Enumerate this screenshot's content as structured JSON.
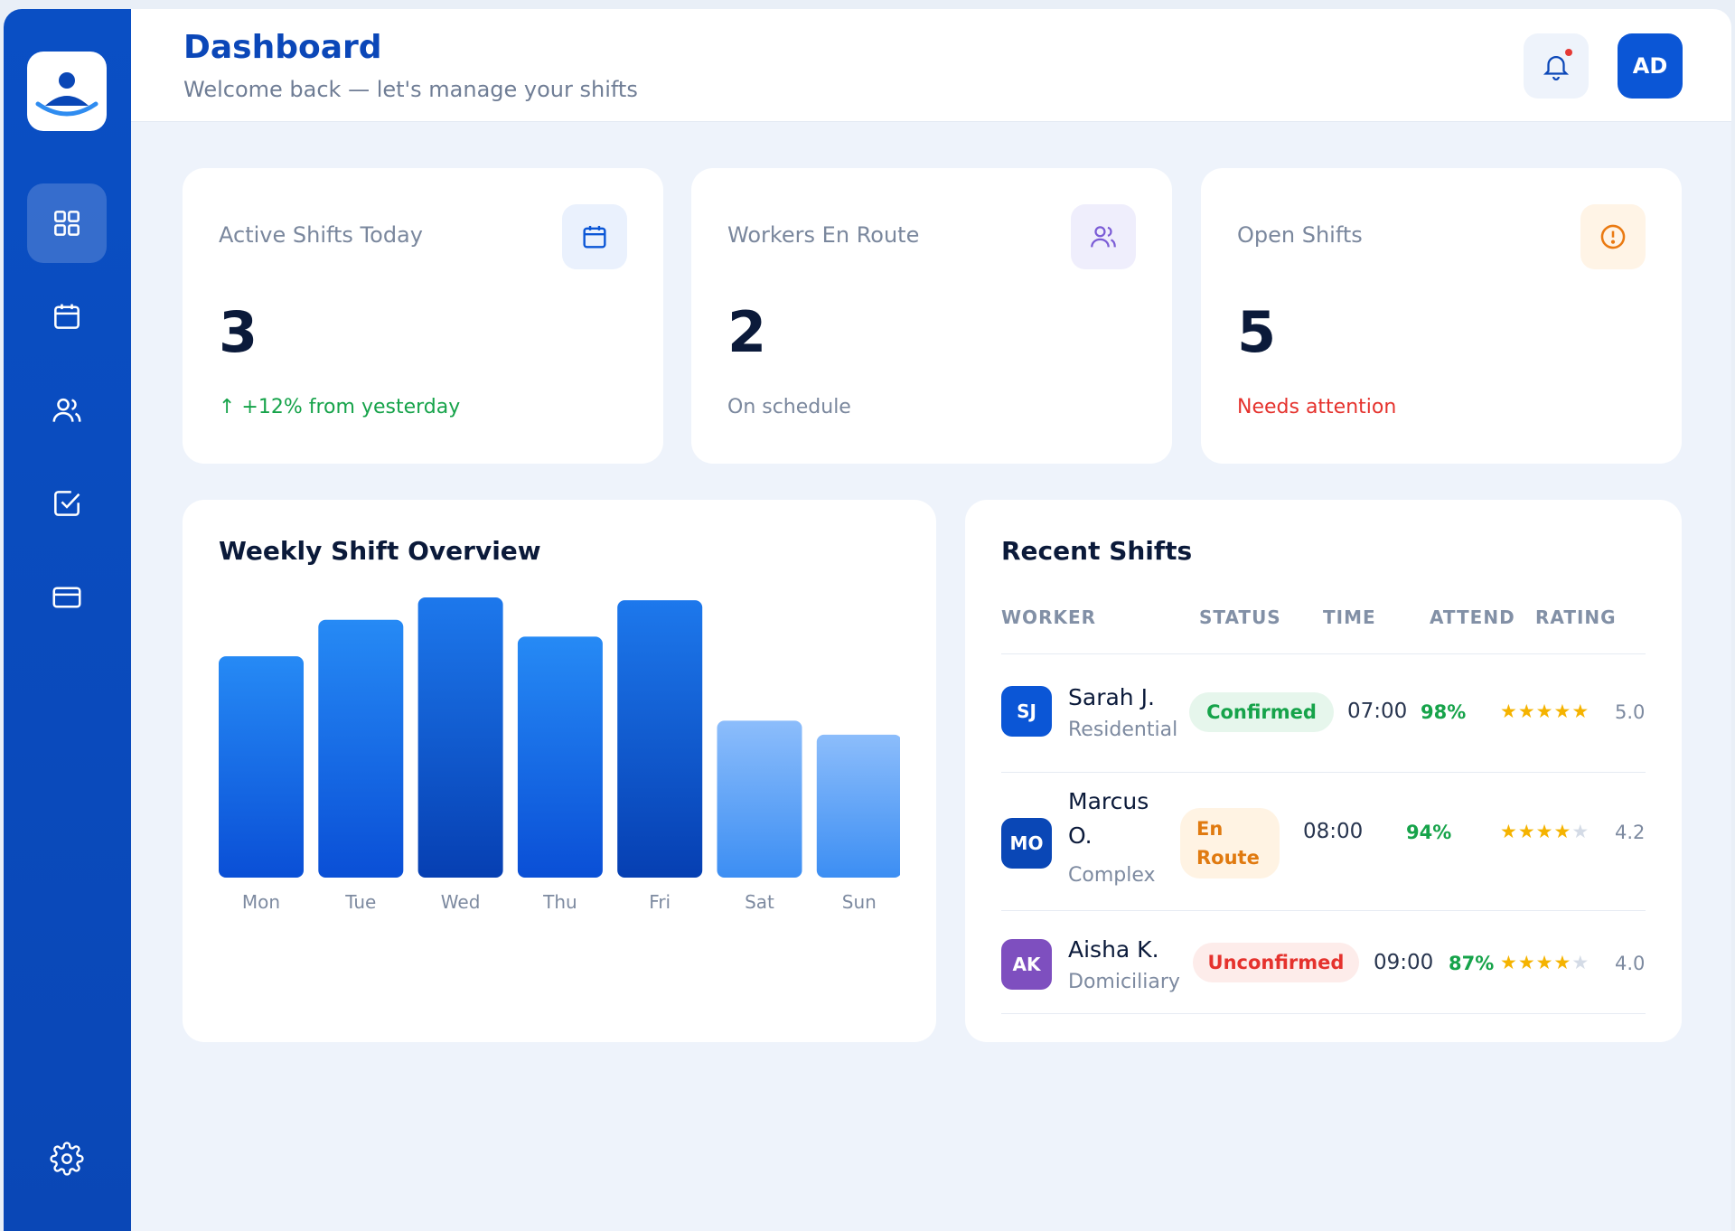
{
  "header": {
    "title": "Dashboard",
    "subtitle": "Welcome back — let's manage your shifts",
    "avatar_initials": "AD"
  },
  "sidebar": {
    "items": [
      {
        "icon": "dashboard-grid-icon",
        "active": true
      },
      {
        "icon": "calendar-icon",
        "active": false
      },
      {
        "icon": "users-icon",
        "active": false
      },
      {
        "icon": "checkbox-icon",
        "active": false
      },
      {
        "icon": "credit-card-icon",
        "active": false
      }
    ],
    "bottom_icon": "settings-gear-icon"
  },
  "stats": [
    {
      "label": "Active Shifts Today",
      "value": "3",
      "note": "↑ +12% from yesterday",
      "note_color": "#16a34a",
      "icon": "calendar-icon"
    },
    {
      "label": "Workers En Route",
      "value": "2",
      "note": "On schedule",
      "note_color": "#7a879d",
      "icon": "users-icon"
    },
    {
      "label": "Open Shifts",
      "value": "5",
      "note": "Needs attention",
      "note_color": "#e5322d",
      "icon": "alert-circle-icon"
    }
  ],
  "chart": {
    "title": "Weekly Shift Overview"
  },
  "chart_data": {
    "type": "bar",
    "categories": [
      "Mon",
      "Tue",
      "Wed",
      "Thu",
      "Fri",
      "Sat",
      "Sun"
    ],
    "values": [
      79,
      92,
      100,
      86,
      99,
      56,
      51
    ],
    "ylim": [
      0,
      100
    ],
    "title": "Weekly Shift Overview",
    "xlabel": "",
    "ylabel": "",
    "grid": false
  },
  "recent": {
    "title": "Recent Shifts",
    "headers": {
      "worker": "WORKER",
      "status": "STATUS",
      "time": "TIME",
      "attend": "ATTEND",
      "rating": "RATING"
    },
    "rows": [
      {
        "initials": "SJ",
        "name": "Sarah J.",
        "type": "Residential",
        "status": "Confirmed",
        "time": "07:00",
        "attend": "98%",
        "stars": 5,
        "rating": "5.0",
        "avatar_color": "#0b56d6"
      },
      {
        "initials": "MO",
        "name": "Marcus O.",
        "type": "Complex",
        "status": "En Route",
        "time": "08:00",
        "attend": "94%",
        "stars": 4,
        "rating": "4.2",
        "avatar_color": "#0a47b6"
      },
      {
        "initials": "AK",
        "name": "Aisha K.",
        "type": "Domiciliary",
        "status": "Unconfirmed",
        "time": "09:00",
        "attend": "87%",
        "stars": 4,
        "rating": "4.0",
        "avatar_color": "#7e4fbf"
      }
    ]
  }
}
